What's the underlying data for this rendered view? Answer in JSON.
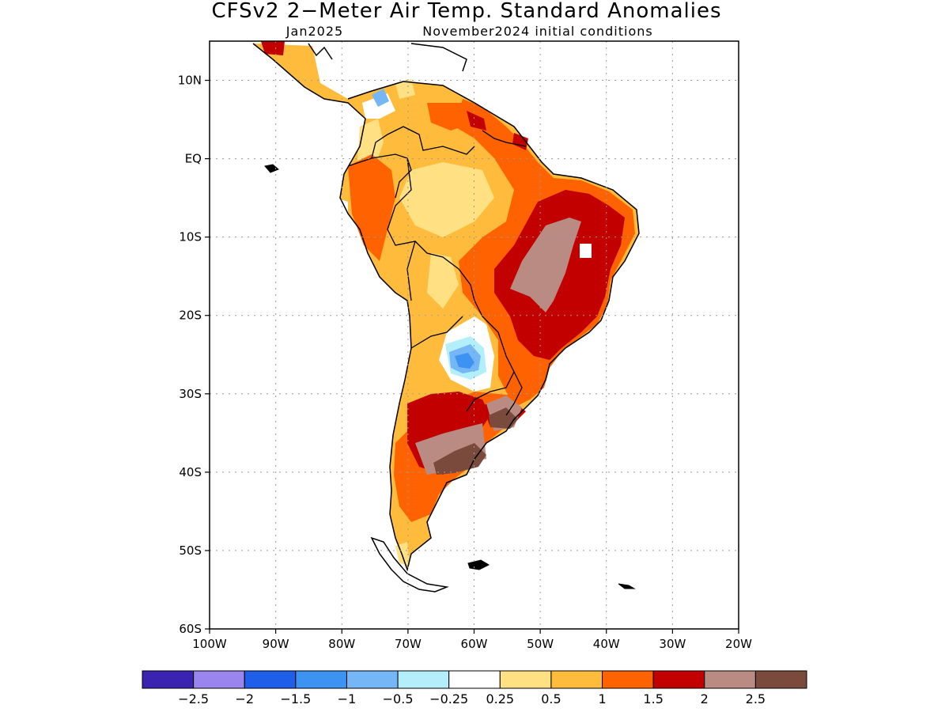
{
  "title": "CFSv2 2−Meter Air Temp. Standard Anomalies",
  "subtitle_left": "Jan2025",
  "subtitle_right": "November2024 initial conditions",
  "map": {
    "lon_range": [
      -100,
      -20
    ],
    "lat_range": [
      -60,
      15
    ],
    "lat_ticks": [
      {
        "value": 10,
        "label": "10N"
      },
      {
        "value": 0,
        "label": "EQ"
      },
      {
        "value": -10,
        "label": "10S"
      },
      {
        "value": -20,
        "label": "20S"
      },
      {
        "value": -30,
        "label": "30S"
      },
      {
        "value": -40,
        "label": "40S"
      },
      {
        "value": -50,
        "label": "50S"
      },
      {
        "value": -60,
        "label": "60S"
      }
    ],
    "lon_ticks": [
      {
        "value": -100,
        "label": "100W"
      },
      {
        "value": -90,
        "label": "90W"
      },
      {
        "value": -80,
        "label": "80W"
      },
      {
        "value": -70,
        "label": "70W"
      },
      {
        "value": -60,
        "label": "60W"
      },
      {
        "value": -50,
        "label": "50W"
      },
      {
        "value": -40,
        "label": "40W"
      },
      {
        "value": -30,
        "label": "30W"
      },
      {
        "value": -20,
        "label": "20W"
      }
    ],
    "grid": "dotted"
  },
  "colorbar": {
    "colors": [
      "#3a23b0",
      "#9a85ee",
      "#1f5ee8",
      "#3d93f2",
      "#74b6f6",
      "#b2effb",
      "#ffffff",
      "#ffe082",
      "#ffbb3b",
      "#ff6200",
      "#c30000",
      "#b98b82",
      "#7a4b3c"
    ],
    "labels": [
      "−2.5",
      "−2",
      "−1.5",
      "−1",
      "−0.5",
      "−0.25",
      "0.25",
      "0.5",
      "1",
      "1.5",
      "2",
      "2.5"
    ]
  }
}
